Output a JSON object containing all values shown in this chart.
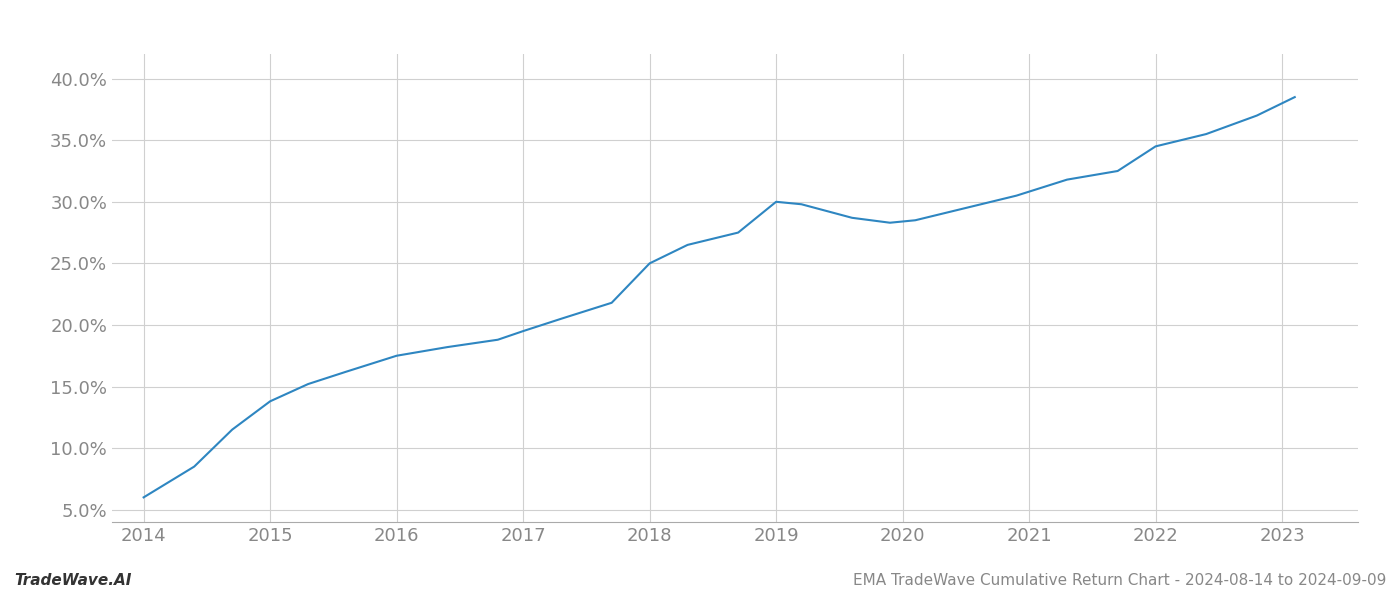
{
  "x_values": [
    2014.0,
    2014.4,
    2014.7,
    2015.0,
    2015.3,
    2015.6,
    2016.0,
    2016.4,
    2016.8,
    2017.0,
    2017.3,
    2017.7,
    2018.0,
    2018.3,
    2018.7,
    2019.0,
    2019.2,
    2019.6,
    2019.9,
    2020.1,
    2020.5,
    2020.9,
    2021.3,
    2021.7,
    2022.0,
    2022.4,
    2022.8,
    2023.1
  ],
  "y_values": [
    6.0,
    8.5,
    11.5,
    13.8,
    15.2,
    16.2,
    17.5,
    18.2,
    18.8,
    19.5,
    20.5,
    21.8,
    25.0,
    26.5,
    27.5,
    30.0,
    29.8,
    28.7,
    28.3,
    28.5,
    29.5,
    30.5,
    31.8,
    32.5,
    34.5,
    35.5,
    37.0,
    38.5
  ],
  "line_color": "#2E86C1",
  "line_width": 1.5,
  "background_color": "#ffffff",
  "grid_color": "#d0d0d0",
  "footer_left": "TradeWave.AI",
  "footer_right": "EMA TradeWave Cumulative Return Chart - 2024-08-14 to 2024-09-09",
  "xlim": [
    2013.75,
    2023.6
  ],
  "ylim": [
    4.0,
    42.0
  ],
  "xtick_labels": [
    "2014",
    "2015",
    "2016",
    "2017",
    "2018",
    "2019",
    "2020",
    "2021",
    "2022",
    "2023"
  ],
  "xtick_positions": [
    2014,
    2015,
    2016,
    2017,
    2018,
    2019,
    2020,
    2021,
    2022,
    2023
  ],
  "ytick_positions": [
    5.0,
    10.0,
    15.0,
    20.0,
    25.0,
    30.0,
    35.0,
    40.0
  ],
  "ytick_labels": [
    "5.0%",
    "10.0%",
    "15.0%",
    "20.0%",
    "25.0%",
    "30.0%",
    "35.0%",
    "40.0%"
  ],
  "tick_fontsize": 13,
  "footer_fontsize": 11
}
